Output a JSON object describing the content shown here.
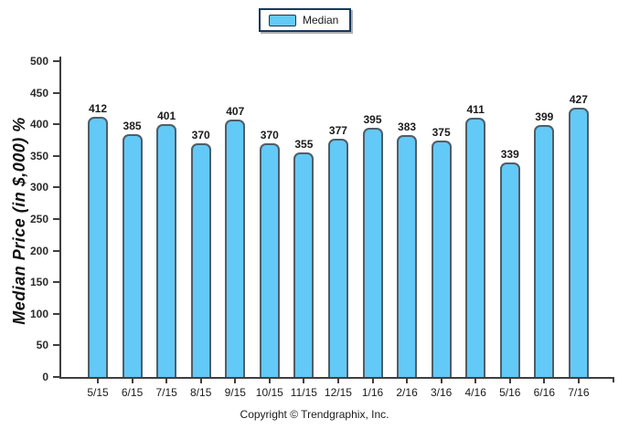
{
  "legend": {
    "label": "Median",
    "swatch_color": "#63c9f7",
    "border_color": "#17375e"
  },
  "footer": {
    "copyright": "Copyright © Trendgraphix, Inc."
  },
  "colors": {
    "bar_fill": "#63c9f7",
    "bar_border": "#4f5d68",
    "axis": "#3f3f3f"
  },
  "chart_data": {
    "type": "bar",
    "title": "",
    "xlabel": "",
    "ylabel": "Median Price (in $,000) %",
    "series_name": "Median",
    "categories": [
      "5/15",
      "6/15",
      "7/15",
      "8/15",
      "9/15",
      "10/15",
      "11/15",
      "12/15",
      "1/16",
      "2/16",
      "3/16",
      "4/16",
      "5/16",
      "6/16",
      "7/16"
    ],
    "values": [
      412,
      385,
      401,
      370,
      407,
      370,
      355,
      377,
      395,
      383,
      375,
      411,
      339,
      399,
      427
    ],
    "ylim": [
      0,
      500
    ],
    "ytick_step": 50,
    "grid": false,
    "legend_position": "top-center",
    "bar_color": "#63c9f7",
    "bar_border_color": "#4f5d68"
  }
}
